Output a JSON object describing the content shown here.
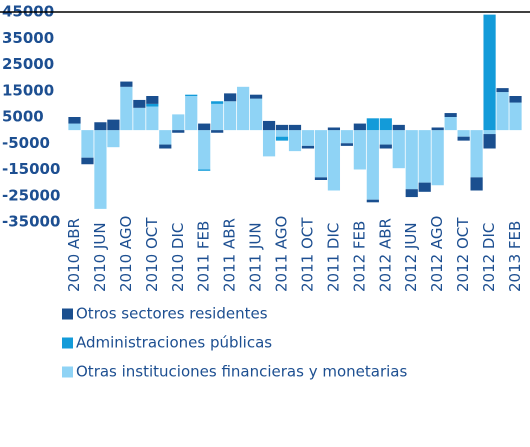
{
  "chart_data": {
    "type": "bar",
    "stacked": true,
    "categories": [
      "2010 ABR",
      null,
      "2010 JUN",
      null,
      "2010 AGO",
      null,
      "2010 OCT",
      null,
      "2010 DIC",
      null,
      "2011 FEB",
      null,
      "2011 ABR",
      null,
      "2011 JUN",
      null,
      "2011 AGO",
      null,
      "2011 OCT",
      null,
      "2011 DIC",
      null,
      "2012 FEB",
      null,
      "2012 ABR",
      null,
      "2012 JUN",
      null,
      "2012 AGO",
      null,
      "2012 OCT",
      null,
      "2012 DIC",
      null,
      "2013 FEB"
    ],
    "series": [
      {
        "name": "Otros sectores residentes",
        "color": "#1a4f8f",
        "values": [
          2500,
          -2500,
          3000,
          4000,
          2000,
          3000,
          3000,
          -1500,
          -1000,
          0,
          2500,
          -1000,
          3000,
          0,
          1500,
          3500,
          2000,
          2000,
          -1000,
          -1000,
          1000,
          -1000,
          2500,
          -1000,
          -1500,
          2000,
          -3000,
          -3500,
          1000,
          1500,
          -1500,
          -5000,
          -5500,
          1500,
          2500
        ]
      },
      {
        "name": "Administraciones públicas",
        "color": "#139bd9",
        "values": [
          0,
          0,
          0,
          0,
          0,
          0,
          1000,
          0,
          0,
          500,
          -500,
          1000,
          0,
          0,
          0,
          0,
          -1500,
          0,
          0,
          0,
          0,
          0,
          0,
          4500,
          4500,
          0,
          0,
          0,
          0,
          0,
          0,
          0,
          44000,
          0,
          0
        ]
      },
      {
        "name": "Otras instituciones financieras y monetarias",
        "color": "#8fd3f5",
        "values": [
          2500,
          -10500,
          -30000,
          -6500,
          16500,
          8500,
          9000,
          -5500,
          6000,
          13000,
          -15000,
          10000,
          11000,
          16500,
          12000,
          -10000,
          -2500,
          -8000,
          -6000,
          -18000,
          -23000,
          -5000,
          -15000,
          -26500,
          -5500,
          -14500,
          -22500,
          -20000,
          -21000,
          5000,
          -2500,
          -18000,
          -1500,
          14500,
          10500
        ]
      }
    ],
    "ylim": [
      -35000,
      45000
    ],
    "yticks": [
      -35000,
      -25000,
      -15000,
      -5000,
      5000,
      15000,
      25000,
      35000,
      45000
    ]
  }
}
